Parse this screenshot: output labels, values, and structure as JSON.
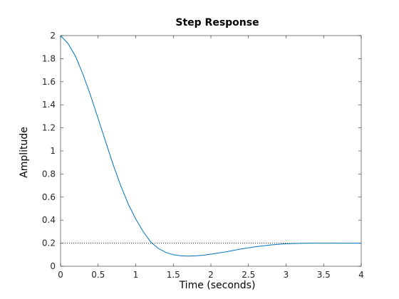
{
  "chart_data": {
    "type": "line",
    "title": "Step Response",
    "xlabel": "Time (seconds)",
    "ylabel": "Amplitude",
    "xlim": [
      0,
      4
    ],
    "ylim": [
      0,
      2
    ],
    "x_ticks": [
      "0",
      "0.5",
      "1",
      "1.5",
      "2",
      "2.5",
      "3",
      "3.5",
      "4"
    ],
    "y_ticks": [
      "0",
      "0.2",
      "0.4",
      "0.6",
      "0.8",
      "1",
      "1.2",
      "1.4",
      "1.6",
      "1.8",
      "2"
    ],
    "grid": false,
    "series": [
      {
        "color": "#0072bd",
        "x": [
          0,
          0.1,
          0.2,
          0.3,
          0.4,
          0.5,
          0.6,
          0.7,
          0.8,
          0.9,
          1.0,
          1.1,
          1.2,
          1.3,
          1.4,
          1.5,
          1.6,
          1.7,
          1.8,
          1.9,
          2.0,
          2.2,
          2.4,
          2.6,
          2.8,
          3.0,
          3.2,
          3.4,
          3.6,
          3.8,
          4.0
        ],
        "y": [
          2.0,
          1.93,
          1.82,
          1.66,
          1.48,
          1.28,
          1.08,
          0.88,
          0.7,
          0.54,
          0.41,
          0.3,
          0.21,
          0.155,
          0.12,
          0.1,
          0.09,
          0.088,
          0.09,
          0.096,
          0.105,
          0.125,
          0.15,
          0.17,
          0.185,
          0.195,
          0.199,
          0.201,
          0.201,
          0.2,
          0.2
        ]
      }
    ],
    "reference_lines": [
      {
        "y": 0.2,
        "style": "dotted",
        "color": "#000000"
      }
    ]
  }
}
